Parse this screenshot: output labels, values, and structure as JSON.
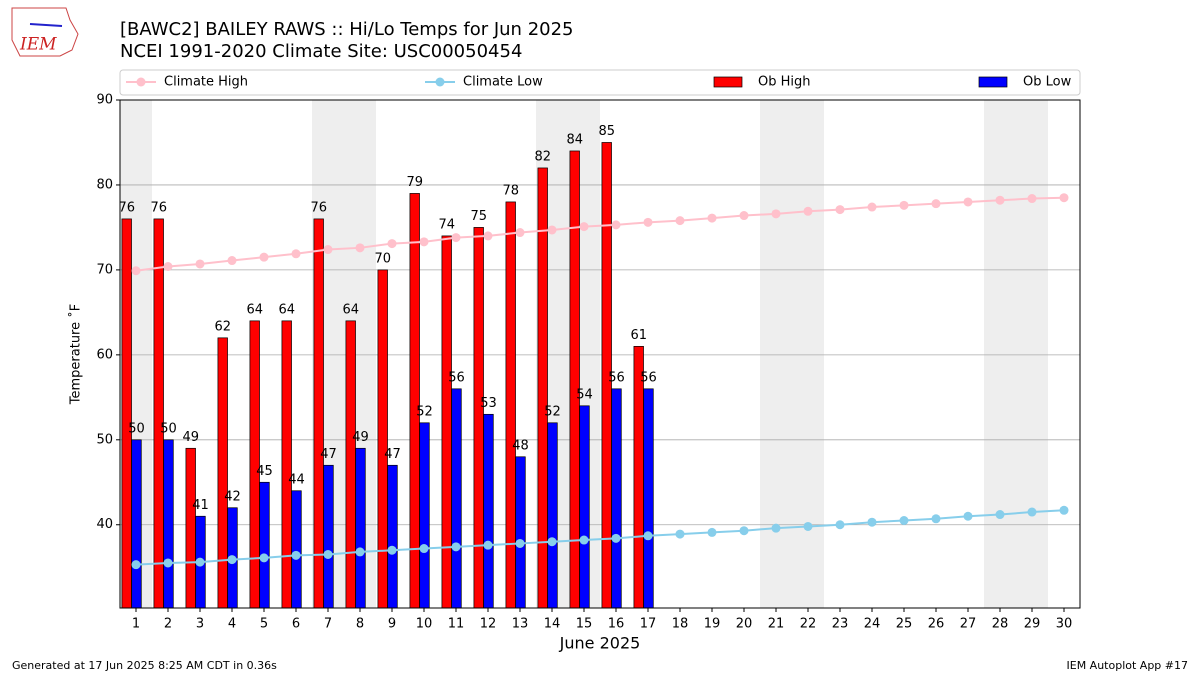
{
  "logo_text": "IEM",
  "chart_data": {
    "type": "bar",
    "title": "[BAWC2] BAILEY RAWS :: Hi/Lo Temps for Jun 2025",
    "subtitle": "NCEI 1991-2020 Climate Site: USC00050454",
    "x_label": "June 2025",
    "y_label": "Temperature ˚F",
    "x": [
      1,
      2,
      3,
      4,
      5,
      6,
      7,
      8,
      9,
      10,
      11,
      12,
      13,
      14,
      15,
      16,
      17,
      18,
      19,
      20,
      21,
      22,
      23,
      24,
      25,
      26,
      27,
      28,
      29,
      30
    ],
    "xlim": [
      0.5,
      30.5
    ],
    "xticks": [
      1,
      2,
      3,
      4,
      5,
      6,
      7,
      8,
      9,
      10,
      11,
      12,
      13,
      14,
      15,
      16,
      17,
      18,
      19,
      20,
      21,
      22,
      23,
      24,
      25,
      26,
      27,
      28,
      29,
      30
    ],
    "ylim": [
      30.2,
      90
    ],
    "yticks": [
      40,
      50,
      60,
      70,
      80,
      90
    ],
    "grid": true,
    "legend": "top",
    "weekend_days": [
      1,
      7,
      8,
      14,
      15,
      21,
      22,
      28,
      29
    ],
    "series": [
      {
        "name": "Climate High",
        "type": "line",
        "color": "#ffc0cb",
        "values": [
          69.9,
          70.4,
          70.7,
          71.1,
          71.5,
          71.9,
          72.4,
          72.6,
          73.1,
          73.3,
          73.8,
          74.0,
          74.4,
          74.7,
          75.1,
          75.3,
          75.6,
          75.8,
          76.1,
          76.4,
          76.6,
          76.9,
          77.1,
          77.4,
          77.6,
          77.8,
          78.0,
          78.2,
          78.4,
          78.5
        ]
      },
      {
        "name": "Climate Low",
        "type": "line",
        "color": "#87ceeb",
        "values": [
          35.3,
          35.5,
          35.6,
          35.9,
          36.1,
          36.4,
          36.5,
          36.8,
          37.0,
          37.2,
          37.4,
          37.6,
          37.8,
          38.0,
          38.2,
          38.4,
          38.7,
          38.9,
          39.1,
          39.3,
          39.6,
          39.8,
          40.0,
          40.3,
          40.5,
          40.7,
          41.0,
          41.2,
          41.5,
          41.7
        ]
      },
      {
        "name": "Ob High",
        "type": "bar",
        "color": "#ff0000",
        "values": [
          76,
          76,
          49,
          62,
          64,
          64,
          76,
          64,
          70,
          79,
          74,
          75,
          78,
          82,
          84,
          85,
          61,
          null,
          null,
          null,
          null,
          null,
          null,
          null,
          null,
          null,
          null,
          null,
          null,
          null
        ]
      },
      {
        "name": "Ob Low",
        "type": "bar",
        "color": "#0000ff",
        "values": [
          50,
          50,
          41,
          42,
          45,
          44,
          47,
          49,
          47,
          52,
          56,
          53,
          48,
          52,
          54,
          56,
          56,
          null,
          null,
          null,
          null,
          null,
          null,
          null,
          null,
          null,
          null,
          null,
          null,
          null
        ]
      }
    ],
    "footer_left": "Generated at 17 Jun 2025 8:25 AM CDT in 0.36s",
    "footer_right": "IEM Autoplot App #17"
  }
}
